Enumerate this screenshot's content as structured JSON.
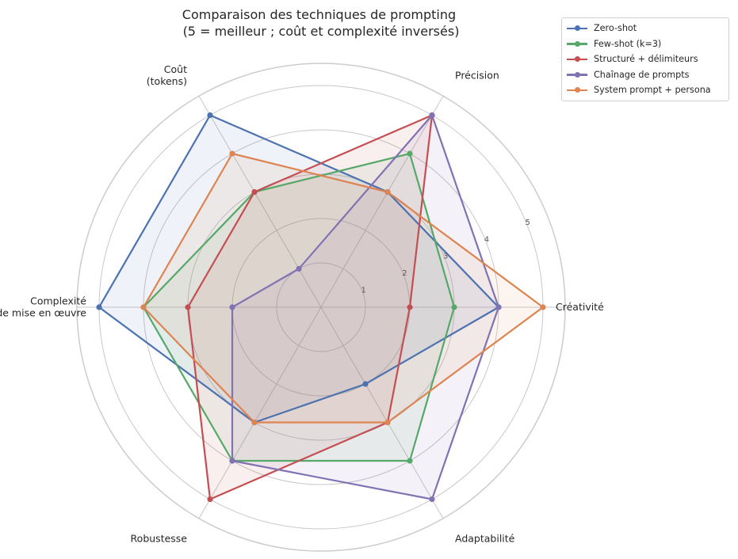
{
  "chart_data": {
    "type": "radar",
    "title": "Comparaison des techniques de prompting\n(5 = meilleur ; coût et complexité inversés)",
    "axes": [
      "Créativité",
      "Précision",
      "Coût\n(tokens)",
      "Complexité\nde mise en œuvre",
      "Robustesse",
      "Adaptabilité"
    ],
    "rticks": [
      1,
      2,
      3,
      4,
      5
    ],
    "rlim": [
      0,
      5.5
    ],
    "grid": true,
    "legend_position": "outside-top-right",
    "series": [
      {
        "name": "Zero-shot",
        "color": "#4c72b0",
        "values": [
          4,
          3,
          5,
          5,
          3,
          2
        ]
      },
      {
        "name": "Few-shot (k=3)",
        "color": "#55a868",
        "values": [
          3,
          4,
          3,
          4,
          4,
          4
        ]
      },
      {
        "name": "Structuré + délimiteurs",
        "color": "#c44e52",
        "values": [
          2,
          5,
          3,
          3,
          5,
          3
        ]
      },
      {
        "name": "Chaînage de prompts",
        "color": "#8172b3",
        "values": [
          4,
          5,
          1,
          2,
          4,
          5
        ]
      },
      {
        "name": "System prompt + persona",
        "color": "#dd8452",
        "values": [
          5,
          3,
          4,
          4,
          3,
          3
        ]
      }
    ]
  }
}
